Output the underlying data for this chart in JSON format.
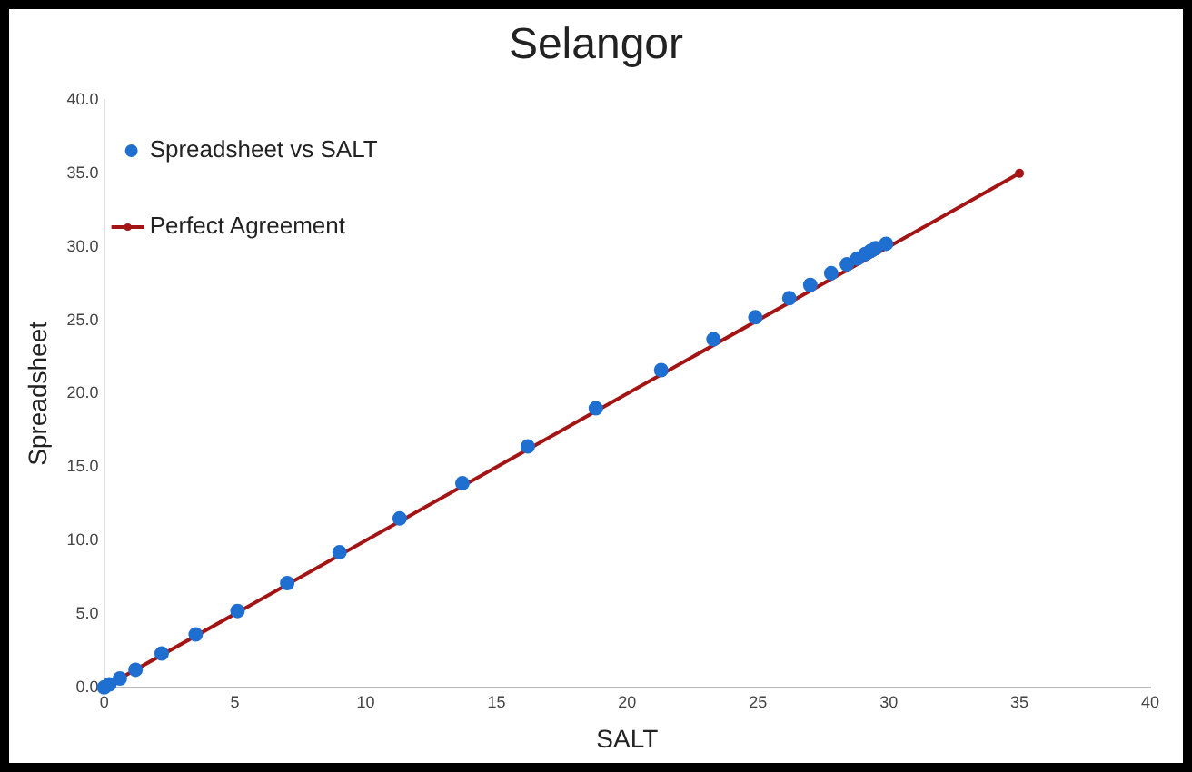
{
  "chart_data": {
    "type": "scatter",
    "title": "Selangor",
    "xlabel": "SALT",
    "ylabel": "Spreadsheet",
    "xlim": [
      0,
      40
    ],
    "xticks": [
      0,
      5,
      10,
      15,
      20,
      25,
      30,
      35,
      40
    ],
    "ylim": [
      0,
      40
    ],
    "yticks": [
      {
        "value": 0,
        "label": "0.0"
      },
      {
        "value": 5,
        "label": "5.0"
      },
      {
        "value": 10,
        "label": "10.0"
      },
      {
        "value": 15,
        "label": "15.0"
      },
      {
        "value": 20,
        "label": "20.0"
      },
      {
        "value": 25,
        "label": "25.0"
      },
      {
        "value": 30,
        "label": "30.0"
      },
      {
        "value": 35,
        "label": "35.0"
      },
      {
        "value": 40,
        "label": "40.0"
      }
    ],
    "grid": false,
    "legend": "top left",
    "series": [
      {
        "name": "Spreadsheet vs SALT",
        "type": "scatter",
        "color": "#1f6fd1",
        "marker": "circle",
        "x": [
          0,
          0.2,
          0.6,
          1.2,
          2.2,
          3.5,
          5.1,
          7.0,
          9.0,
          11.3,
          13.7,
          16.2,
          18.8,
          21.3,
          23.3,
          24.9,
          26.2,
          27.0,
          27.8,
          28.4,
          28.8,
          29.1,
          29.3,
          29.5,
          29.9
        ],
        "values": [
          0,
          0.2,
          0.6,
          1.2,
          2.3,
          3.6,
          5.2,
          7.1,
          9.2,
          11.5,
          13.9,
          16.4,
          19.0,
          21.6,
          23.7,
          25.2,
          26.5,
          27.4,
          28.2,
          28.8,
          29.2,
          29.5,
          29.7,
          29.9,
          30.2
        ]
      },
      {
        "name": "Perfect Agreement",
        "type": "line",
        "color": "#a31515",
        "marker": "circle",
        "line_style": "solid",
        "x": [
          0,
          35
        ],
        "values": [
          0,
          35
        ]
      }
    ]
  }
}
